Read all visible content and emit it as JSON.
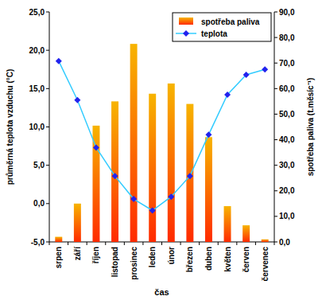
{
  "chart_data": {
    "type": "bar",
    "x_label": "čas",
    "y_label": "průměrná teplota vzduchu (°C)",
    "y2_label": "spotřeba paliva (t.měsíc⁻¹)",
    "categories": [
      "srpen",
      "září",
      "říjen",
      "listopad",
      "prosinec",
      "leden",
      "únor",
      "březen",
      "duben",
      "květen",
      "červen",
      "červenec"
    ],
    "series": [
      {
        "name": "spotřeba paliva",
        "type": "bar",
        "axis": "y2",
        "color": "#f7b400",
        "values": [
          2,
          15,
          45.5,
          55,
          77.5,
          58,
          62,
          54,
          41,
          14,
          6.5,
          1
        ]
      },
      {
        "name": "teplota",
        "type": "line",
        "color": "#33ccff",
        "marker": "diamond",
        "values": [
          18.6,
          13.5,
          7.3,
          3.6,
          0.6,
          -0.9,
          0.9,
          3.6,
          9.0,
          14.2,
          16.8,
          17.5
        ]
      }
    ],
    "ylim": [
      -5,
      25
    ],
    "yticks": [
      {
        "value": -5,
        "label": "-5,0"
      },
      {
        "value": 0,
        "label": "0,0"
      },
      {
        "value": 5,
        "label": "5,0"
      },
      {
        "value": 10,
        "label": "10,0"
      },
      {
        "value": 15,
        "label": "15,0"
      },
      {
        "value": 20,
        "label": "20,0"
      },
      {
        "value": 25,
        "label": "25,0"
      }
    ],
    "y2lim": [
      0,
      90
    ],
    "y2ticks": [
      {
        "value": 0,
        "label": "0,0"
      },
      {
        "value": 10,
        "label": "10,0"
      },
      {
        "value": 20,
        "label": "20,0"
      },
      {
        "value": 30,
        "label": "30,0"
      },
      {
        "value": 40,
        "label": "40,0"
      },
      {
        "value": 50,
        "label": "50,0"
      },
      {
        "value": 60,
        "label": "60,0"
      },
      {
        "value": 70,
        "label": "70,0"
      },
      {
        "value": 80,
        "label": "80,0"
      },
      {
        "value": 90,
        "label": "90,0"
      }
    ],
    "grid": false,
    "legend": "top-right"
  }
}
